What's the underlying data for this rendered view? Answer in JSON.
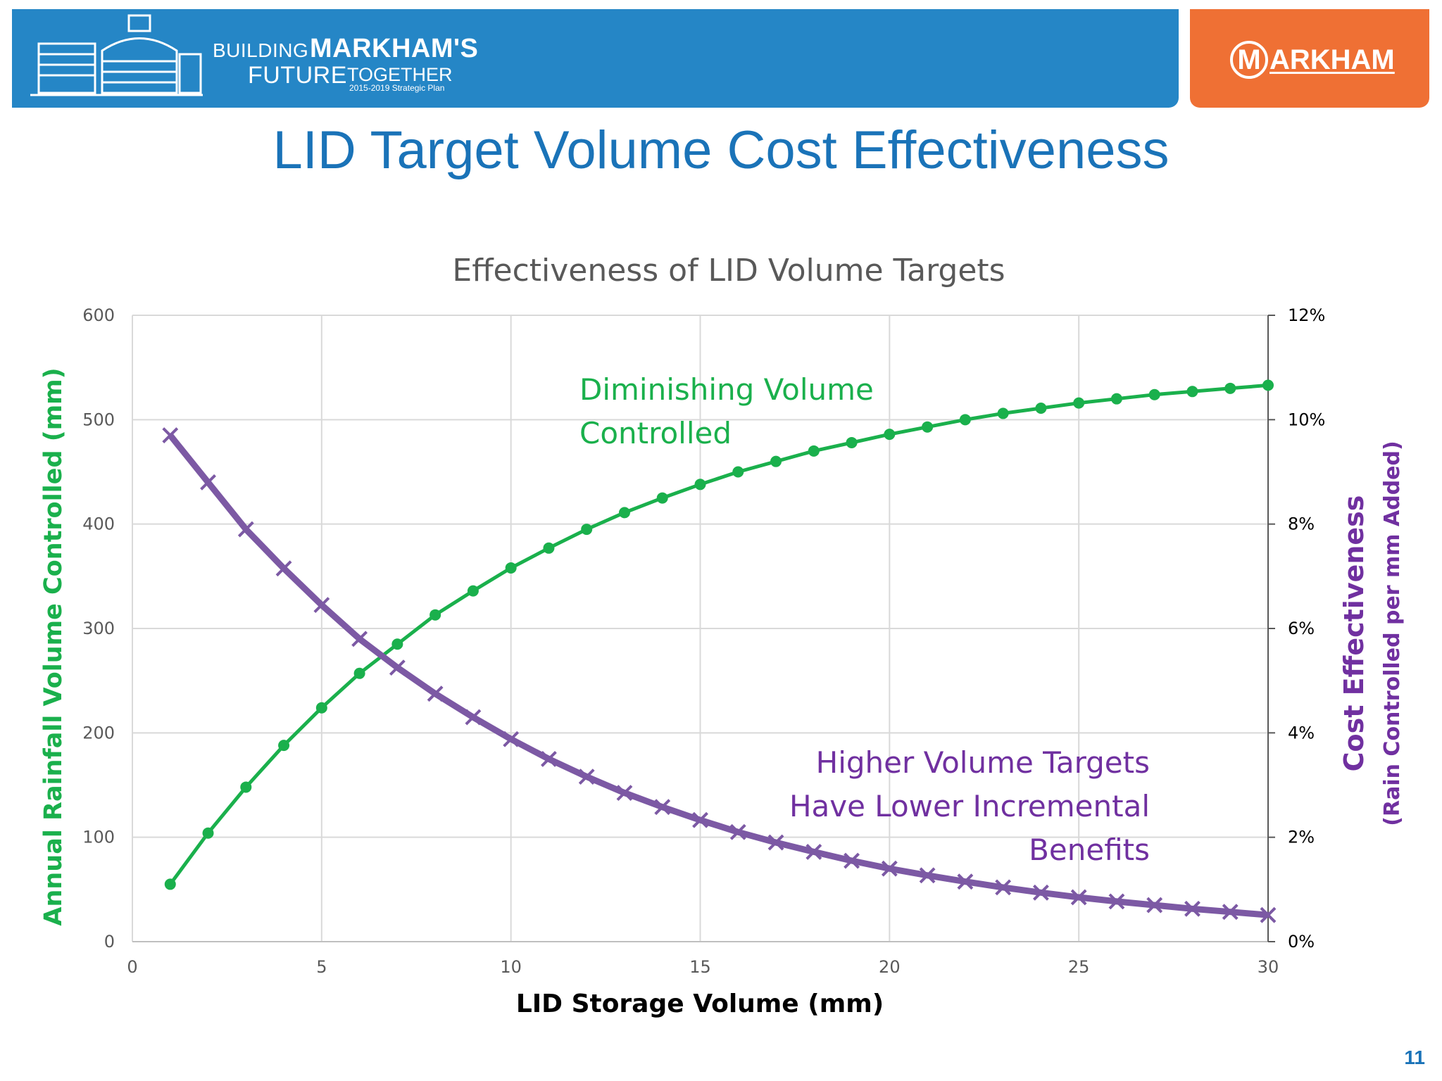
{
  "banner": {
    "tagline_building": "BUILDING",
    "tagline_markhams": "MARKHAM'S",
    "tagline_future": "FUTURE",
    "tagline_together": "TOGETHER",
    "tagline_plan": "2015-2019 Strategic Plan",
    "logo_ring_letter": "M",
    "logo_text": "ARKHAM",
    "blue": "#2586c6",
    "orange": "#ef7034"
  },
  "slide": {
    "title": "LID Target Volume Cost Effectiveness",
    "page_number": "11"
  },
  "chart_data": {
    "type": "line",
    "title": "Effectiveness of LID Volume Targets",
    "xlabel": "LID Storage Volume (mm)",
    "ylabel_left": "Annual Rainfall Volume Controlled (mm)",
    "ylabel_right_line1": "Cost Effectiveness",
    "ylabel_right_line2": "(Rain Controlled  per mm Added)",
    "xlim": [
      0,
      30
    ],
    "ylim_left": [
      0,
      600
    ],
    "ylim_right": [
      0,
      0.12
    ],
    "x_ticks": [
      "0",
      "5",
      "10",
      "15",
      "20",
      "25",
      "30"
    ],
    "y_left_ticks": [
      "0",
      "100",
      "200",
      "300",
      "400",
      "500",
      "600"
    ],
    "y_right_ticks": [
      "0%",
      "2%",
      "4%",
      "6%",
      "8%",
      "10%",
      "12%"
    ],
    "grid": true,
    "x": [
      1,
      2,
      3,
      4,
      5,
      6,
      7,
      8,
      9,
      10,
      11,
      12,
      13,
      14,
      15,
      16,
      17,
      18,
      19,
      20,
      21,
      22,
      23,
      24,
      25,
      26,
      27,
      28,
      29,
      30
    ],
    "series": [
      {
        "axis": "left",
        "color": "#1ab04c",
        "marker": "circle",
        "values": [
          55,
          104,
          148,
          188,
          224,
          257,
          285,
          313,
          336,
          358,
          377,
          395,
          411,
          425,
          438,
          450,
          460,
          470,
          478,
          486,
          493,
          500,
          506,
          511,
          516,
          520,
          524,
          527,
          530,
          533
        ]
      },
      {
        "axis": "right",
        "color": "#7c59a4",
        "marker": "x",
        "values": [
          0.097,
          0.088,
          0.079,
          0.0715,
          0.0645,
          0.058,
          0.0525,
          0.0475,
          0.043,
          0.0388,
          0.035,
          0.0316,
          0.0285,
          0.0258,
          0.0233,
          0.021,
          0.019,
          0.0172,
          0.0155,
          0.014,
          0.0127,
          0.0115,
          0.0104,
          0.0094,
          0.0085,
          0.0077,
          0.007,
          0.0063,
          0.0057,
          0.0051
        ]
      }
    ],
    "annotations": [
      {
        "lines": [
          "Diminishing Volume",
          "Controlled"
        ],
        "color": "#1ab04c"
      },
      {
        "lines": [
          "Higher Volume Targets",
          "Have Lower Incremental",
          "Benefits"
        ],
        "color": "#7030a0"
      }
    ]
  }
}
